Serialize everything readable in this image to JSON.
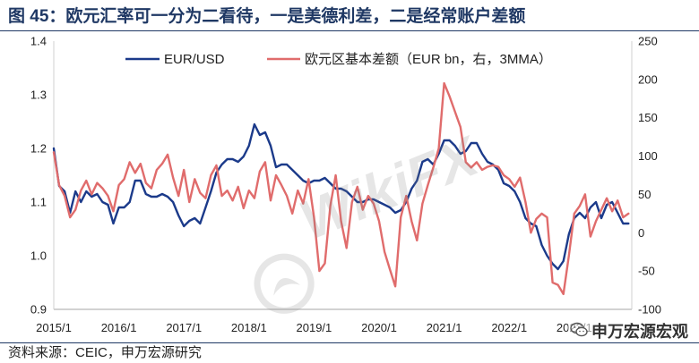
{
  "title": "图 45：欧元汇率可一分为二看待，一是美德利差，二是经常账户差额",
  "source": "资料来源：CEIC，申万宏源研究",
  "brand_watermark": "申万宏源宏观",
  "watermark": "WikiFX",
  "icons": {
    "brand": "wechat-icon",
    "watermark_logo": "wikifx-logo-icon"
  },
  "colors": {
    "title": "#1f3864",
    "eur_usd": "#1b3a8a",
    "basic_balance": "#e06c6c"
  },
  "chart_data": {
    "type": "line",
    "grid": false,
    "legend_position": "top",
    "x": [
      "2015/1",
      "2015/2",
      "2015/3",
      "2015/4",
      "2015/5",
      "2015/6",
      "2015/7",
      "2015/8",
      "2015/9",
      "2015/10",
      "2015/11",
      "2015/12",
      "2016/1",
      "2016/2",
      "2016/3",
      "2016/4",
      "2016/5",
      "2016/6",
      "2016/7",
      "2016/8",
      "2016/9",
      "2016/10",
      "2016/11",
      "2016/12",
      "2017/1",
      "2017/2",
      "2017/3",
      "2017/4",
      "2017/5",
      "2017/6",
      "2017/7",
      "2017/8",
      "2017/9",
      "2017/10",
      "2017/11",
      "2017/12",
      "2018/1",
      "2018/2",
      "2018/3",
      "2018/4",
      "2018/5",
      "2018/6",
      "2018/7",
      "2018/8",
      "2018/9",
      "2018/10",
      "2018/11",
      "2018/12",
      "2019/1",
      "2019/2",
      "2019/3",
      "2019/4",
      "2019/5",
      "2019/6",
      "2019/7",
      "2019/8",
      "2019/9",
      "2019/10",
      "2019/11",
      "2019/12",
      "2020/1",
      "2020/2",
      "2020/3",
      "2020/4",
      "2020/5",
      "2020/6",
      "2020/7",
      "2020/8",
      "2020/9",
      "2020/10",
      "2020/11",
      "2020/12",
      "2021/1",
      "2021/2",
      "2021/3",
      "2021/4",
      "2021/5",
      "2021/6",
      "2021/7",
      "2021/8",
      "2021/9",
      "2021/10",
      "2021/11",
      "2021/12",
      "2022/1",
      "2022/2",
      "2022/3",
      "2022/4",
      "2022/5",
      "2022/6",
      "2022/7",
      "2022/8",
      "2022/9",
      "2022/10",
      "2022/11",
      "2022/12",
      "2023/1",
      "2023/2",
      "2023/3",
      "2023/4",
      "2023/5",
      "2023/6",
      "2023/7",
      "2023/8",
      "2023/9",
      "2023/10",
      "2023/11"
    ],
    "x_ticks": [
      "2015/1",
      "2016/1",
      "2017/1",
      "2018/1",
      "2019/1",
      "2020/1",
      "2021/1",
      "2022/1",
      "2023/1"
    ],
    "y_left": {
      "ylim": [
        0.9,
        1.4
      ],
      "ticks": [
        "1.4",
        "1.3",
        "1.2",
        "1.1",
        "1.0",
        "0.9"
      ]
    },
    "y_right": {
      "ylim": [
        -100,
        250
      ],
      "ticks": [
        "250",
        "200",
        "150",
        "100",
        "50",
        "0",
        "-50",
        "-100"
      ]
    },
    "series": [
      {
        "name": "EUR/USD",
        "secondary_axis": false,
        "color": "#1b3a8a",
        "values": [
          1.2,
          1.13,
          1.12,
          1.08,
          1.12,
          1.1,
          1.12,
          1.11,
          1.115,
          1.1,
          1.095,
          1.06,
          1.09,
          1.09,
          1.1,
          1.14,
          1.14,
          1.115,
          1.11,
          1.11,
          1.115,
          1.11,
          1.1,
          1.075,
          1.055,
          1.065,
          1.07,
          1.06,
          1.09,
          1.12,
          1.155,
          1.17,
          1.18,
          1.18,
          1.175,
          1.185,
          1.205,
          1.245,
          1.225,
          1.23,
          1.205,
          1.165,
          1.17,
          1.17,
          1.16,
          1.15,
          1.14,
          1.135,
          1.14,
          1.14,
          1.145,
          1.135,
          1.125,
          1.125,
          1.12,
          1.11,
          1.1,
          1.1,
          1.105,
          1.105,
          1.1,
          1.095,
          1.09,
          1.08,
          1.085,
          1.1,
          1.125,
          1.14,
          1.175,
          1.18,
          1.17,
          1.19,
          1.215,
          1.215,
          1.205,
          1.19,
          1.195,
          1.21,
          1.21,
          1.19,
          1.175,
          1.17,
          1.16,
          1.135,
          1.13,
          1.12,
          1.1,
          1.07,
          1.06,
          1.055,
          1.02,
          1.0,
          0.985,
          0.975,
          0.99,
          1.04,
          1.07,
          1.08,
          1.07,
          1.09,
          1.1,
          1.07,
          1.095,
          1.1,
          1.08,
          1.06,
          1.06
        ]
      },
      {
        "name": "欧元区基本差额（EUR bn，右，3MMA）",
        "secondary_axis": true,
        "color": "#e06c6c",
        "values": [
          105,
          62,
          48,
          20,
          30,
          55,
          68,
          50,
          65,
          58,
          48,
          28,
          62,
          70,
          92,
          78,
          90,
          65,
          58,
          82,
          90,
          102,
          72,
          48,
          82,
          40,
          70,
          52,
          45,
          75,
          88,
          48,
          55,
          42,
          60,
          32,
          55,
          45,
          80,
          92,
          42,
          75,
          62,
          48,
          25,
          55,
          38,
          70,
          20,
          -50,
          -40,
          35,
          75,
          15,
          -20,
          40,
          60,
          30,
          48,
          38,
          15,
          -25,
          -48,
          -70,
          20,
          48,
          15,
          -10,
          38,
          62,
          85,
          110,
          195,
          178,
          158,
          138,
          92,
          85,
          92,
          82,
          86,
          88,
          86,
          75,
          70,
          60,
          72,
          40,
          0,
          18,
          25,
          20,
          -65,
          -68,
          -80,
          -30,
          25,
          35,
          50,
          -5,
          15,
          30,
          45,
          28,
          42,
          20,
          25
        ]
      }
    ]
  }
}
